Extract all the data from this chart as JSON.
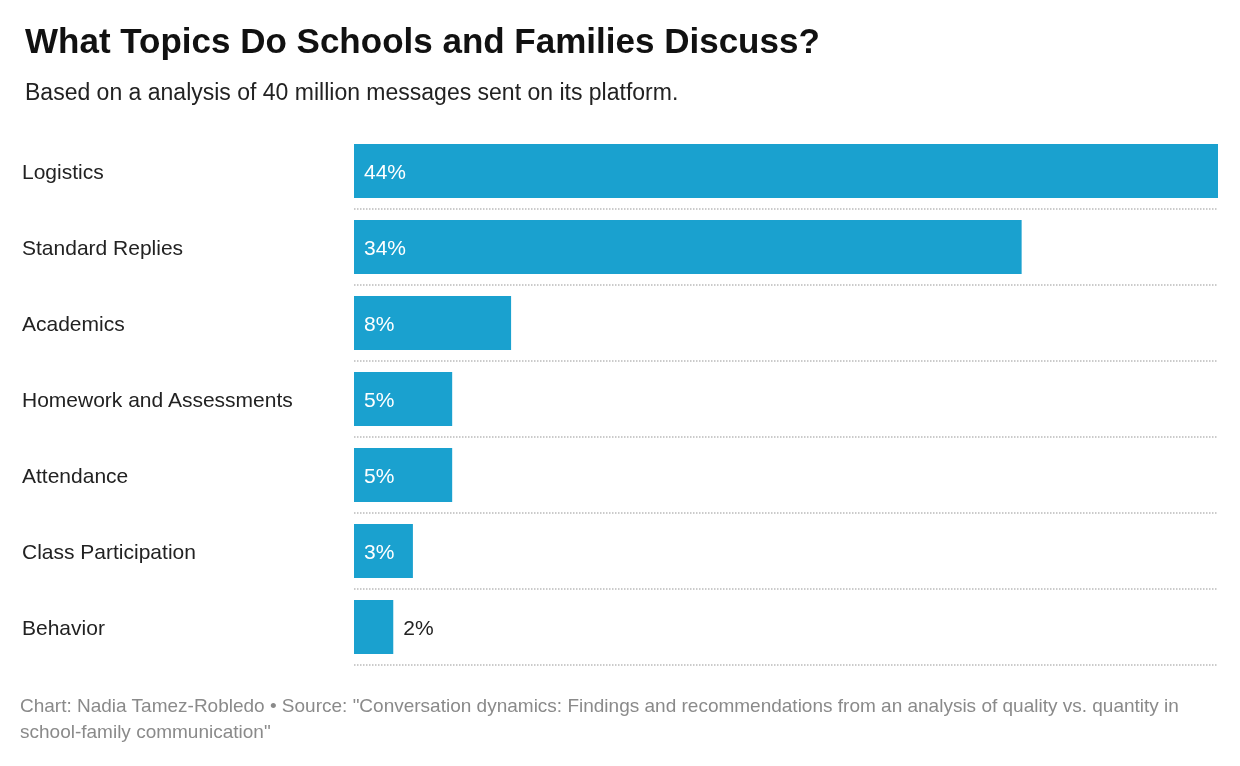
{
  "chart_data": {
    "type": "bar",
    "orientation": "horizontal",
    "title": "What Topics Do Schools and Families Discuss?",
    "subtitle": "Based on a analysis of 40 million messages sent on its platform.",
    "categories": [
      "Logistics",
      "Standard Replies",
      "Academics",
      "Homework and Assessments",
      "Attendance",
      "Class Participation",
      "Behavior"
    ],
    "values": [
      44,
      34,
      8,
      5,
      5,
      3,
      2
    ],
    "value_labels": [
      "44%",
      "34%",
      "8%",
      "5%",
      "5%",
      "3%",
      "2%"
    ],
    "color": "#1aa1cf",
    "grid": "y",
    "annotations": [
      "Chart: Nadia Tamez-Robledo • Source: \"Conversation dynamics: Findings and recommendations from an analysis of quality vs. quantity in school-family communication\""
    ]
  }
}
